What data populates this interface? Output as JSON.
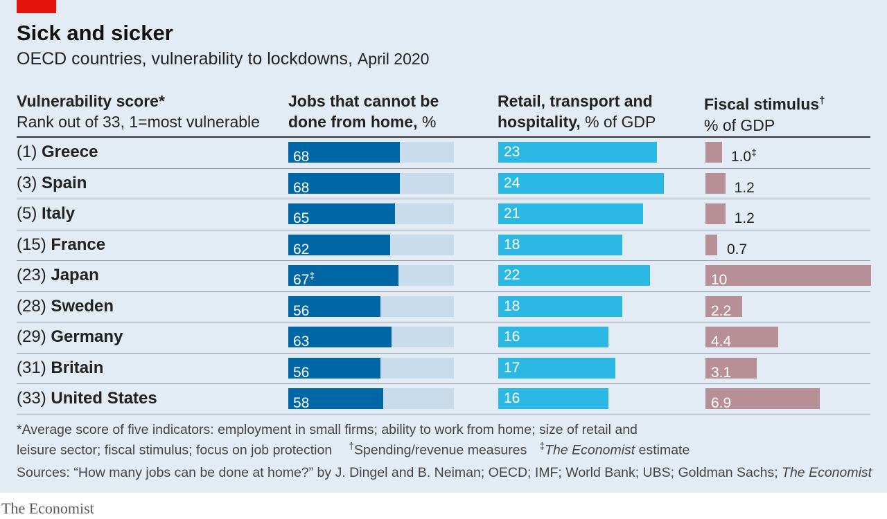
{
  "chart_data": {
    "type": "table",
    "title": "Sick and sicker",
    "subtitle": "OECD countries, vulnerability to lockdowns,",
    "subtitle_date": "April 2020",
    "columns": [
      {
        "title": "Vulnerability score*",
        "subtitle": "Rank out of 33, 1=most vulnerable"
      },
      {
        "title_line1": "Jobs that cannot be",
        "title_line2": "done from home,",
        "unit": "%",
        "max": 100
      },
      {
        "title_line1": "Retail, transport and",
        "title_line2": "hospitality,",
        "unit": "% of GDP",
        "max": 24
      },
      {
        "title": "Fiscal stimulus",
        "title_mark": "†",
        "unit": "% of GDP",
        "max": 10
      }
    ],
    "rows": [
      {
        "rank": "(1)",
        "country": "Greece",
        "jobs": 68,
        "jobs_label": "68",
        "jobs_mark": "",
        "retail": 23,
        "retail_label": "23",
        "fiscal": 1.0,
        "fiscal_label": "1.0",
        "fiscal_mark": "‡"
      },
      {
        "rank": "(3)",
        "country": "Spain",
        "jobs": 68,
        "jobs_label": "68",
        "jobs_mark": "",
        "retail": 24,
        "retail_label": "24",
        "fiscal": 1.2,
        "fiscal_label": "1.2",
        "fiscal_mark": ""
      },
      {
        "rank": "(5)",
        "country": "Italy",
        "jobs": 65,
        "jobs_label": "65",
        "jobs_mark": "",
        "retail": 21,
        "retail_label": "21",
        "fiscal": 1.2,
        "fiscal_label": "1.2",
        "fiscal_mark": ""
      },
      {
        "rank": "(15)",
        "country": "France",
        "jobs": 62,
        "jobs_label": "62",
        "jobs_mark": "",
        "retail": 18,
        "retail_label": "18",
        "fiscal": 0.7,
        "fiscal_label": "0.7",
        "fiscal_mark": ""
      },
      {
        "rank": "(23)",
        "country": "Japan",
        "jobs": 67,
        "jobs_label": "67",
        "jobs_mark": "‡",
        "retail": 22,
        "retail_label": "22",
        "fiscal": 10,
        "fiscal_label": "10",
        "fiscal_mark": ""
      },
      {
        "rank": "(28)",
        "country": "Sweden",
        "jobs": 56,
        "jobs_label": "56",
        "jobs_mark": "",
        "retail": 18,
        "retail_label": "18",
        "fiscal": 2.2,
        "fiscal_label": "2.2",
        "fiscal_mark": ""
      },
      {
        "rank": "(29)",
        "country": "Germany",
        "jobs": 63,
        "jobs_label": "63",
        "jobs_mark": "",
        "retail": 16,
        "retail_label": "16",
        "fiscal": 4.4,
        "fiscal_label": "4.4",
        "fiscal_mark": ""
      },
      {
        "rank": "(31)",
        "country": "Britain",
        "jobs": 56,
        "jobs_label": "56",
        "jobs_mark": "",
        "retail": 17,
        "retail_label": "17",
        "fiscal": 3.1,
        "fiscal_label": "3.1",
        "fiscal_mark": ""
      },
      {
        "rank": "(33)",
        "country": "United States",
        "jobs": 58,
        "jobs_label": "58",
        "jobs_mark": "",
        "retail": 16,
        "retail_label": "16",
        "fiscal": 6.9,
        "fiscal_label": "6.9",
        "fiscal_mark": ""
      }
    ],
    "colors": {
      "jobs": "#0067a6",
      "jobs_bg": "#c8dcec",
      "retail": "#2cb8e4",
      "fiscal": "#b78f97"
    }
  },
  "footnotes": {
    "line1": "*Average score of five indicators: employment in small firms; ability to work from home; size of retail and",
    "line2_a": "leisure sector; fiscal stimulus; focus on job protection",
    "dagger": "†",
    "line2_b": "Spending/revenue measures",
    "ddagger": "‡",
    "line2_c_italic": "The Economist",
    "line2_c": " estimate",
    "sources": "Sources: “How many jobs can be done at home?” by J. Dingel and B. Neiman; OECD; IMF; World Bank; UBS; Goldman Sachs;",
    "sources_italic": "The Economist"
  },
  "brand": "The Economist"
}
